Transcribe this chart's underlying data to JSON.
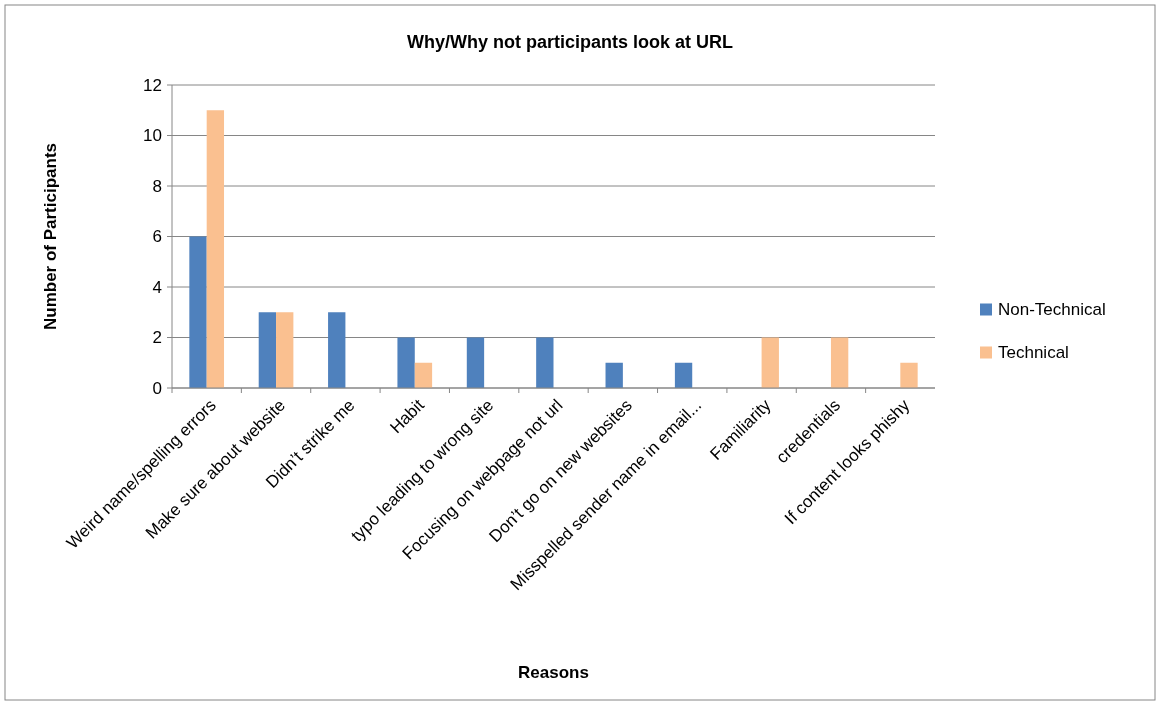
{
  "chart_data": {
    "type": "bar",
    "title": "Why/Why not participants look at URL",
    "xlabel": "Reasons",
    "ylabel": "Number  of Participants",
    "categories": [
      "Weird name/spelling errors",
      "Make sure about website",
      "Didn’t strike me",
      "Habit",
      "typo leading to wrong site",
      "Focusing on webpage not url",
      "Don’t go on new websites",
      "Misspelled sender name in email...",
      "Familiarity",
      "credentials",
      "If content looks phishy"
    ],
    "series": [
      {
        "name": "Non-Technical",
        "color": "#4f81bd",
        "values": [
          6,
          3,
          3,
          2,
          2,
          2,
          1,
          1,
          0,
          0,
          0
        ]
      },
      {
        "name": "Technical",
        "color": "#fac090",
        "values": [
          11,
          3,
          0,
          1,
          0,
          0,
          0,
          0,
          2,
          2,
          1
        ]
      }
    ],
    "ylim": [
      0,
      12
    ],
    "yticks": [
      0,
      2,
      4,
      6,
      8,
      10,
      12
    ],
    "grid": "y",
    "legend": "right"
  }
}
